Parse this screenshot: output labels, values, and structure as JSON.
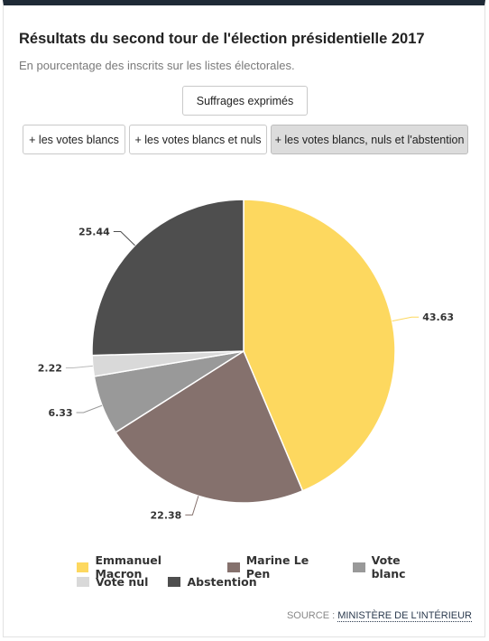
{
  "header": {
    "title": "Résultats du second tour de l'élection présidentielle 2017",
    "subtitle": "En pourcentage des inscrits sur les listes électorales."
  },
  "buttons": {
    "main": "Suffrages exprimés",
    "options": [
      {
        "label": "+ les votes blancs",
        "active": false
      },
      {
        "label": "+ les votes blancs et nuls",
        "active": false
      },
      {
        "label": "+ les votes blancs, nuls et l'abstention",
        "active": true
      }
    ]
  },
  "chart_data": {
    "type": "pie",
    "start": "top, clockwise",
    "slices": [
      {
        "name": "Emmanuel Macron",
        "value": 43.63,
        "color": "#fdd85f"
      },
      {
        "name": "Marine Le Pen",
        "value": 22.38,
        "color": "#85716d"
      },
      {
        "name": "Vote blanc",
        "value": 6.33,
        "color": "#999999"
      },
      {
        "name": "Vote nul",
        "value": 2.22,
        "color": "#d9d9d9"
      },
      {
        "name": "Abstention",
        "value": 25.44,
        "color": "#4e4e4e"
      }
    ],
    "legend_placement": "bottom"
  },
  "source": {
    "prefix": "SOURCE : ",
    "link": "MINISTÈRE DE L'INTÉRIEUR"
  }
}
